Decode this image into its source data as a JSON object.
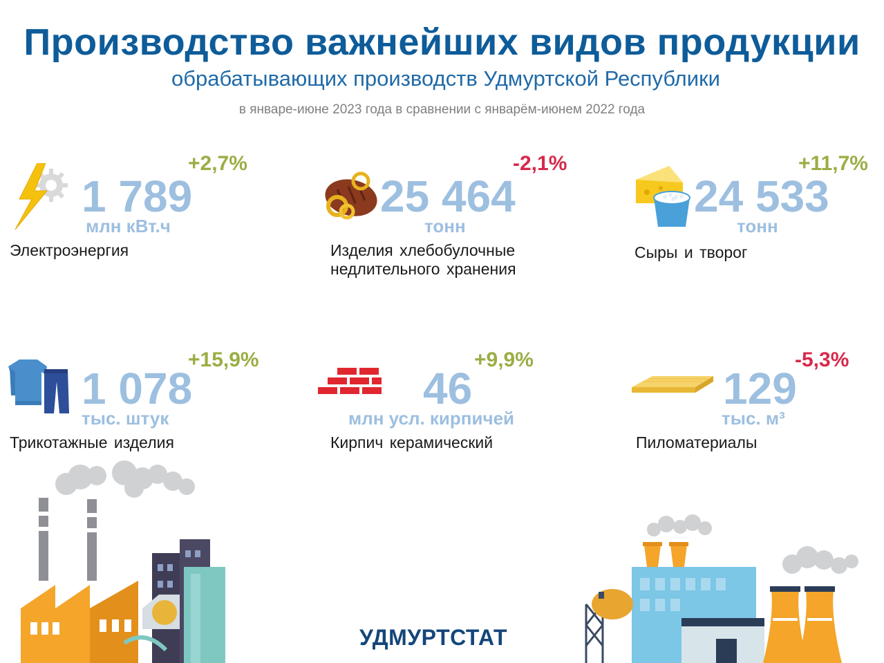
{
  "header": {
    "title": "Производство важнейших видов продукции",
    "subtitle": "обрабатывающих производств Удмуртской Республики",
    "period": "в январе-июне 2023 года в сравнении с январём-июнем 2022 года"
  },
  "items": [
    {
      "value": "1 789",
      "unit": "млн кВт.ч",
      "change": "+2,7%",
      "name": "Электроэнергия",
      "icon": "lightning-gear-icon"
    },
    {
      "value": "25 464",
      "unit": "тонн",
      "change": "-2,1%",
      "name_line1": "Изделия хлебобулочные",
      "name_line2": "недлительного хранения",
      "icon": "bread-icon"
    },
    {
      "value": "24 533",
      "unit": "тонн",
      "change": "+11,7%",
      "name": "Сыры и творог",
      "icon": "cheese-curd-icon"
    },
    {
      "value": "1 078",
      "unit": "тыс. штук",
      "change": "+15,9%",
      "name": "Трикотажные изделия",
      "icon": "sweater-pants-icon"
    },
    {
      "value": "46",
      "unit": "млн усл. кирпичей",
      "change": "+9,9%",
      "name": "Кирпич керамический",
      "icon": "bricks-icon"
    },
    {
      "value": "129",
      "unit": "тыс. м³",
      "change": "-5,3%",
      "name": "Пиломатериалы",
      "icon": "lumber-icon"
    }
  ],
  "footer": {
    "org": "УДМУРТСТАТ"
  },
  "colors": {
    "title": "#0e5c99",
    "value": "#9dbfe0",
    "positive": "#9aae45",
    "negative": "#d6294b"
  }
}
